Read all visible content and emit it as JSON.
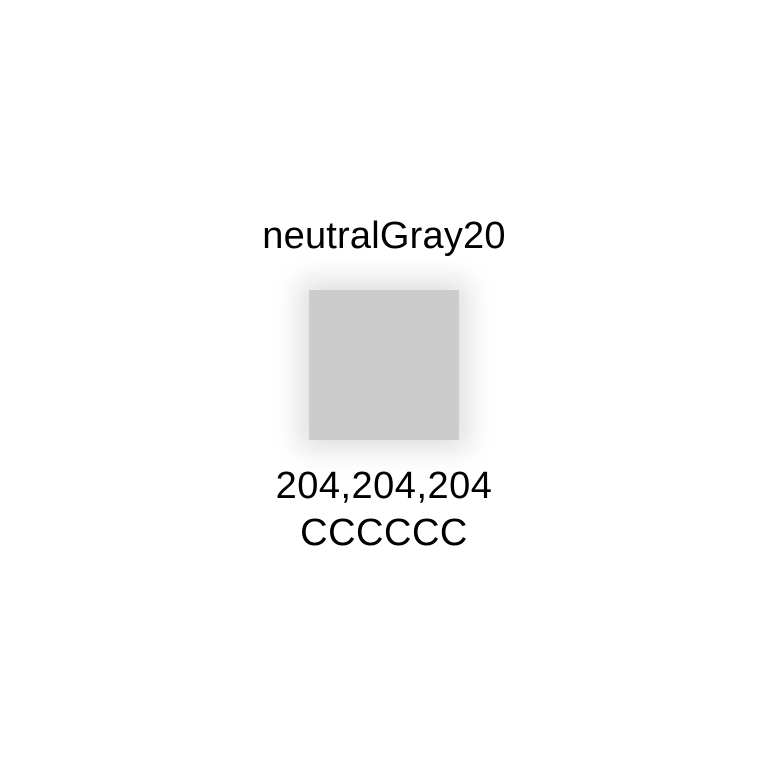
{
  "swatch": {
    "name": "neutralGray20",
    "rgb": "204,204,204",
    "hex": "CCCCCC",
    "color": "#CCCCCC"
  }
}
